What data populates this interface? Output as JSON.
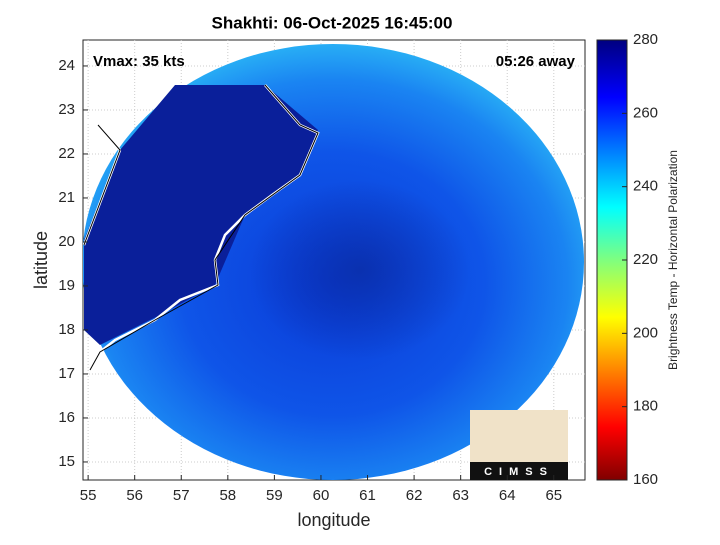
{
  "chart_data": {
    "type": "map",
    "title": "Shakhti: 06-Oct-2025 16:45:00",
    "annotations": [
      "Vmax: 35 kts",
      "05:26 away"
    ],
    "xlabel": "longitude",
    "ylabel": "latitude",
    "xlim": [
      54.89,
      65.67
    ],
    "xticks": [
      55,
      56,
      57,
      58,
      59,
      60,
      61,
      62,
      63,
      64,
      65
    ],
    "ylim": [
      14.59,
      24.59
    ],
    "yticks": [
      15,
      16,
      17,
      18,
      19,
      20,
      21,
      22,
      23,
      24
    ],
    "grid": true,
    "colorbar": {
      "label": "Brightness Temp - Horizontal Polarization",
      "lim": [
        160,
        280
      ],
      "ticks": [
        160,
        180,
        200,
        220,
        240,
        260,
        280
      ]
    },
    "logo": "CIMSS"
  }
}
